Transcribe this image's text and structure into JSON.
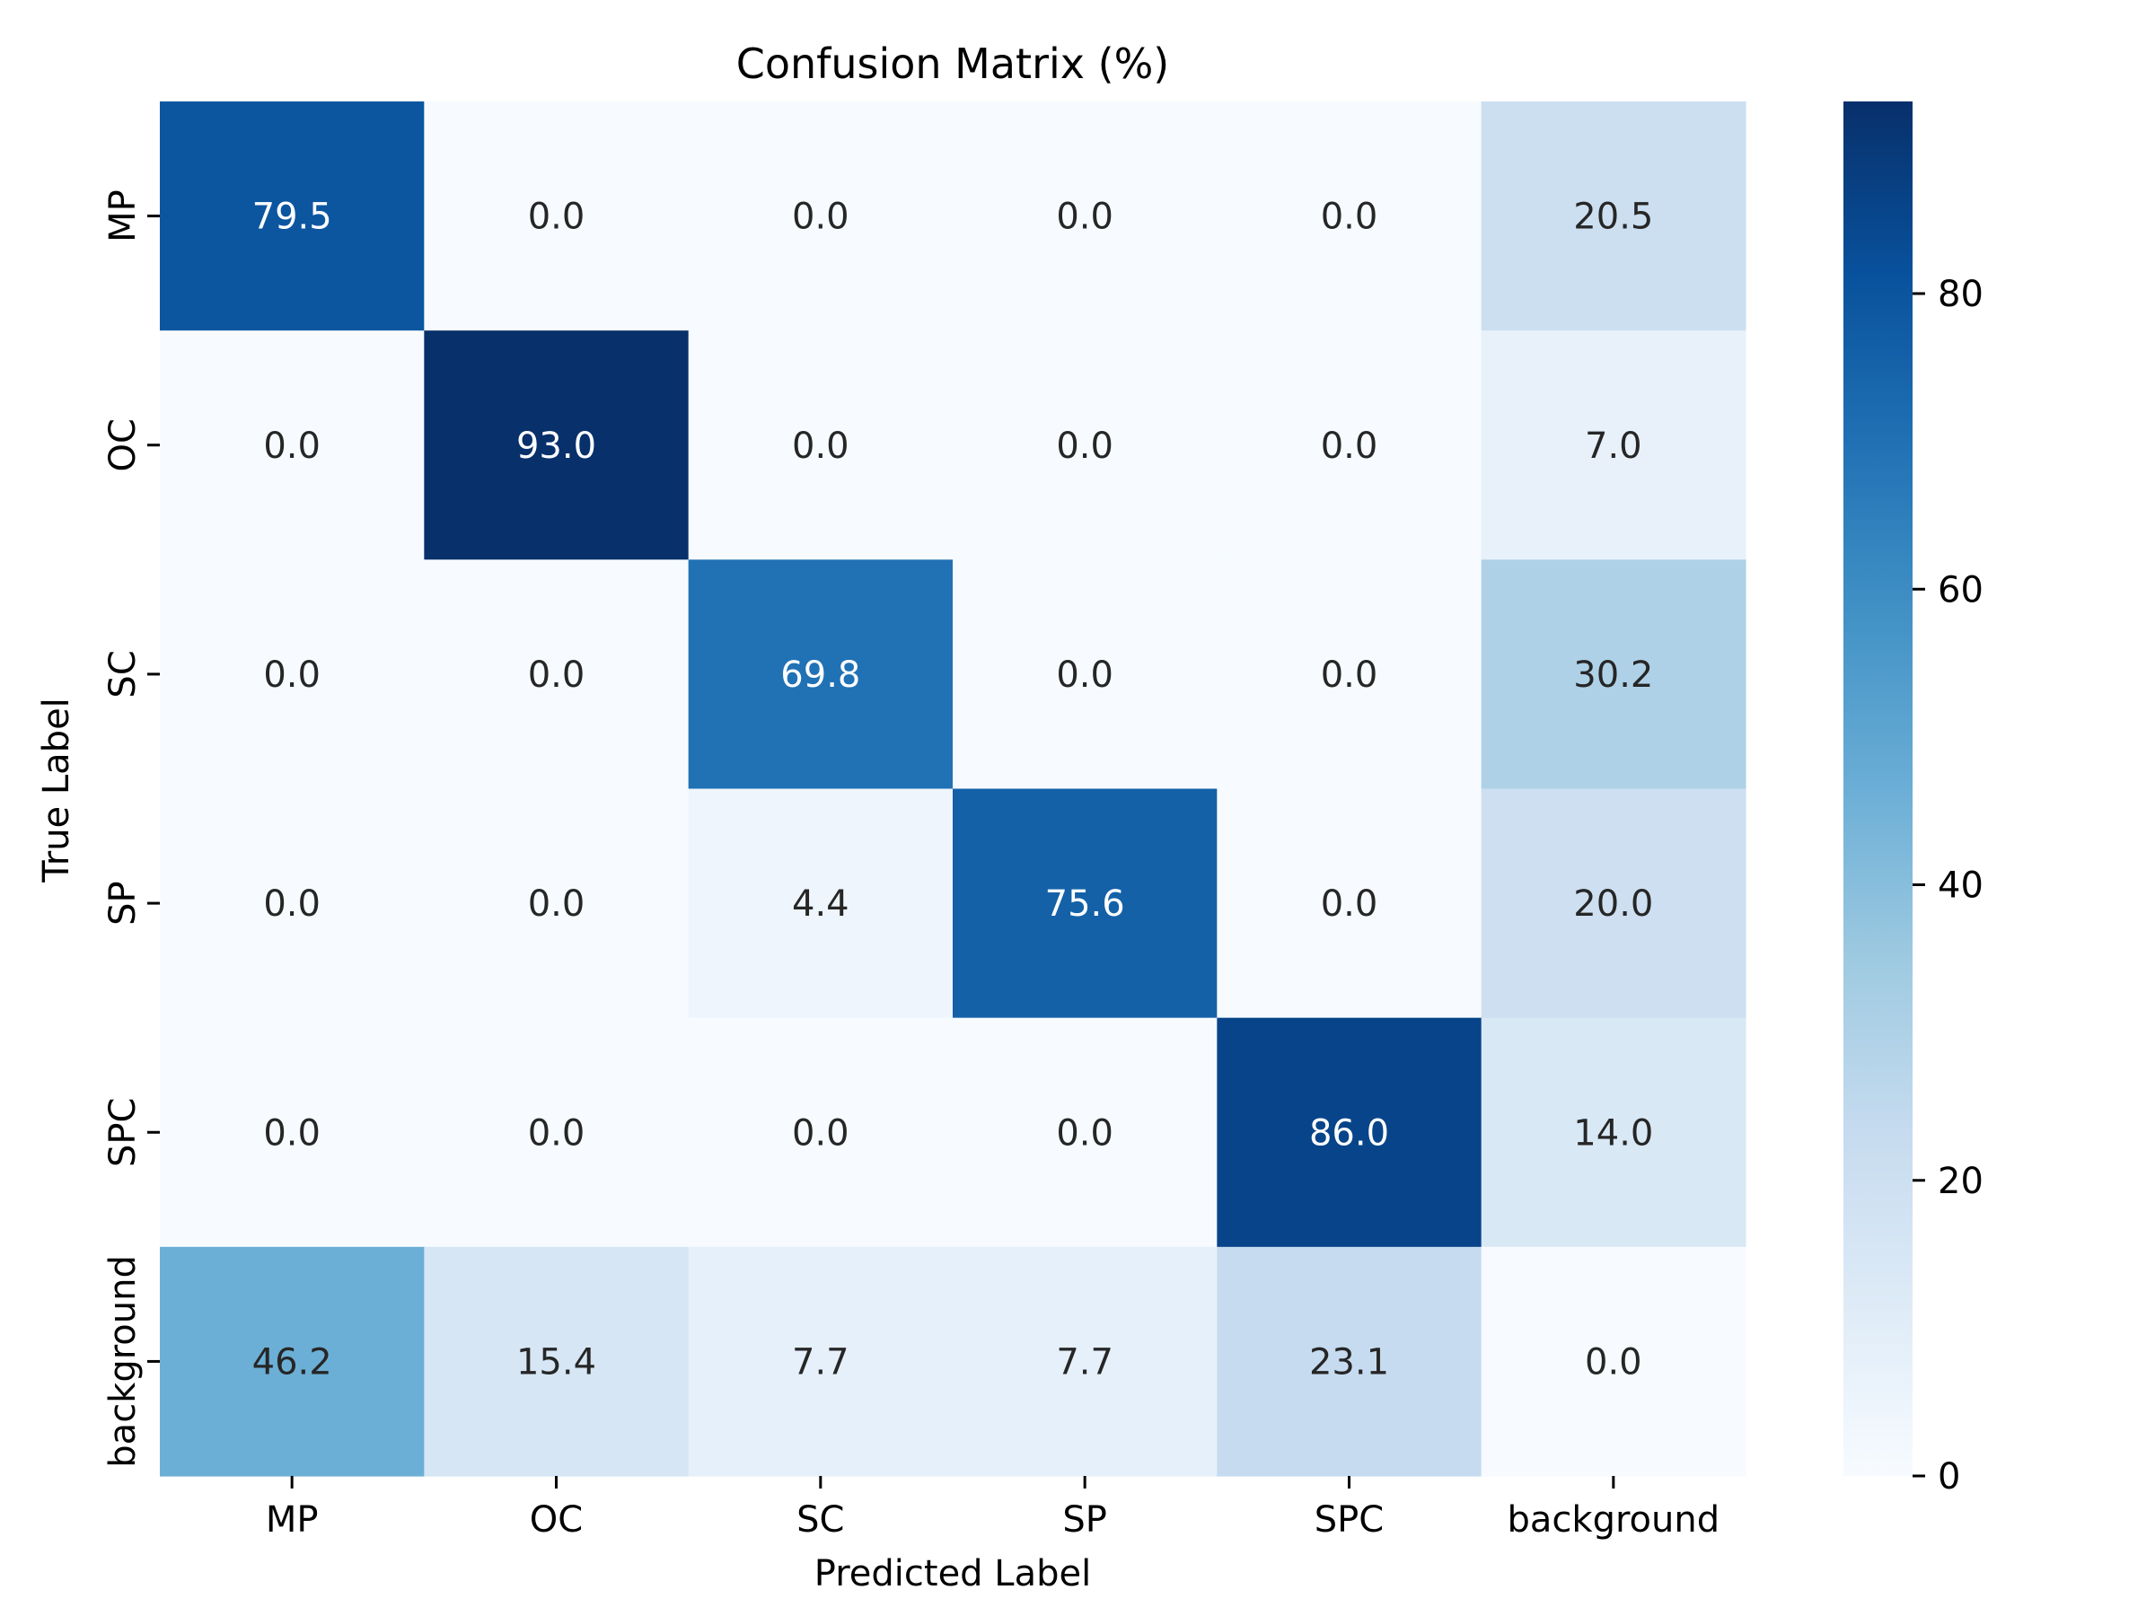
{
  "chart_data": {
    "type": "heatmap",
    "title": "Confusion Matrix (%)",
    "xlabel": "Predicted Label",
    "ylabel": "True Label",
    "x_categories": [
      "MP",
      "OC",
      "SC",
      "SP",
      "SPC",
      "background"
    ],
    "y_categories": [
      "MP",
      "OC",
      "SC",
      "SP",
      "SPC",
      "background"
    ],
    "values": [
      [
        79.5,
        0.0,
        0.0,
        0.0,
        0.0,
        20.5
      ],
      [
        0.0,
        93.0,
        0.0,
        0.0,
        0.0,
        7.0
      ],
      [
        0.0,
        0.0,
        69.8,
        0.0,
        0.0,
        30.2
      ],
      [
        0.0,
        0.0,
        4.4,
        75.6,
        0.0,
        20.0
      ],
      [
        0.0,
        0.0,
        0.0,
        0.0,
        86.0,
        14.0
      ],
      [
        46.2,
        15.4,
        7.7,
        7.7,
        23.1,
        0.0
      ]
    ],
    "value_format": "0.0",
    "colormap": "Blues",
    "color_range": [
      0,
      93.0
    ],
    "colorbar": {
      "ticks": [
        "0",
        "20",
        "40",
        "60",
        "80"
      ],
      "tick_values": [
        0,
        20,
        40,
        60,
        80
      ]
    },
    "grid": false
  }
}
